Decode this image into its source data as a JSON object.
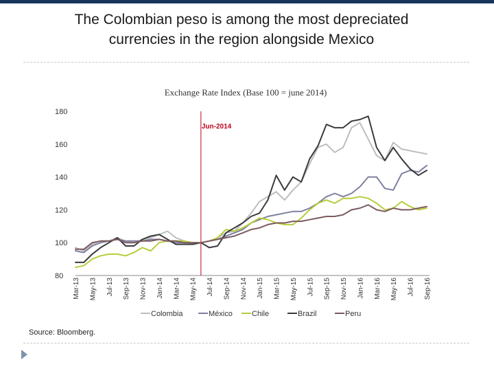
{
  "page": {
    "title_line1": "The Colombian peso is among the most depreciated",
    "title_line2": "currencies in the region alongside Mexico",
    "source": "Source: Bloomberg."
  },
  "chart_data": {
    "type": "line",
    "title": "Exchange Rate Index (Base 100 = june 2014)",
    "xlabel": "",
    "ylabel": "",
    "ylim": [
      80,
      180
    ],
    "yticks": [
      80,
      100,
      120,
      140,
      160,
      180
    ],
    "grid": false,
    "legend_position": "bottom",
    "x": [
      "Mar-13",
      "Apr-13",
      "May-13",
      "Jun-13",
      "Jul-13",
      "Aug-13",
      "Sep-13",
      "Oct-13",
      "Nov-13",
      "Dec-13",
      "Jan-14",
      "Feb-14",
      "Mar-14",
      "Apr-14",
      "May-14",
      "Jun-14",
      "Jul-14",
      "Aug-14",
      "Sep-14",
      "Oct-14",
      "Nov-14",
      "Dec-14",
      "Jan-15",
      "Feb-15",
      "Mar-15",
      "Apr-15",
      "May-15",
      "Jun-15",
      "Jul-15",
      "Aug-15",
      "Sep-15",
      "Oct-15",
      "Nov-15",
      "Dec-15",
      "Jan-16",
      "Feb-16",
      "Mar-16",
      "Apr-16",
      "May-16",
      "Jun-16",
      "Jul-16",
      "Aug-16",
      "Sep-16"
    ],
    "xtick_labels": [
      "Mar-13",
      "May-13",
      "Jul-13",
      "Sep-13",
      "Nov-13",
      "Jan-14",
      "Mar-14",
      "May-14",
      "Jul-14",
      "Sep-14",
      "Nov-14",
      "Jan-15",
      "Mar-15",
      "May-15",
      "Jul-15",
      "Sep-15",
      "Nov-15",
      "Jan-16",
      "Mar-16",
      "May-16",
      "Jul-16",
      "Sep-16"
    ],
    "annotation": {
      "label": "Jun-2014",
      "x": "Jun-14"
    },
    "series": [
      {
        "name": "Colombia",
        "color": "#bdbdbd",
        "values": [
          97,
          95,
          99,
          101,
          101,
          103,
          101,
          100,
          102,
          103,
          105,
          107,
          103,
          101,
          99,
          100,
          101,
          103,
          106,
          107,
          112,
          118,
          125,
          128,
          131,
          126,
          132,
          137,
          148,
          158,
          160,
          155,
          158,
          170,
          173,
          163,
          153,
          150,
          161,
          157,
          156,
          155,
          154
        ]
      },
      {
        "name": "México",
        "color": "#7d7f9e",
        "values": [
          95,
          94,
          98,
          100,
          101,
          102,
          101,
          101,
          101,
          102,
          102,
          101,
          100,
          100,
          100,
          100,
          101,
          102,
          104,
          106,
          108,
          112,
          114,
          116,
          117,
          118,
          119,
          119,
          121,
          124,
          128,
          130,
          128,
          130,
          134,
          140,
          140,
          133,
          132,
          142,
          144,
          143,
          147
        ]
      },
      {
        "name": "Chile",
        "color": "#b8cc3a",
        "values": [
          85,
          86,
          90,
          92,
          93,
          93,
          92,
          94,
          97,
          95,
          100,
          101,
          101,
          101,
          100,
          100,
          101,
          103,
          108,
          107,
          109,
          112,
          115,
          114,
          112,
          111,
          111,
          115,
          120,
          124,
          126,
          124,
          127,
          127,
          128,
          127,
          124,
          120,
          121,
          125,
          122,
          120,
          121
        ]
      },
      {
        "name": "Brazil",
        "color": "#3a3a3c",
        "values": [
          88,
          88,
          93,
          97,
          100,
          103,
          98,
          98,
          102,
          104,
          105,
          102,
          99,
          99,
          99,
          100,
          97,
          98,
          106,
          109,
          112,
          116,
          118,
          126,
          141,
          132,
          140,
          137,
          151,
          159,
          172,
          170,
          170,
          174,
          175,
          177,
          158,
          150,
          158,
          151,
          145,
          141,
          144
        ]
      },
      {
        "name": "Peru",
        "color": "#7b5a5e",
        "values": [
          96,
          96,
          100,
          101,
          101,
          102,
          100,
          100,
          101,
          101,
          102,
          101,
          101,
          100,
          100,
          100,
          101,
          102,
          103,
          104,
          106,
          108,
          109,
          111,
          112,
          112,
          113,
          113,
          114,
          115,
          116,
          116,
          117,
          120,
          121,
          123,
          120,
          119,
          121,
          120,
          120,
          121,
          122
        ]
      }
    ]
  }
}
